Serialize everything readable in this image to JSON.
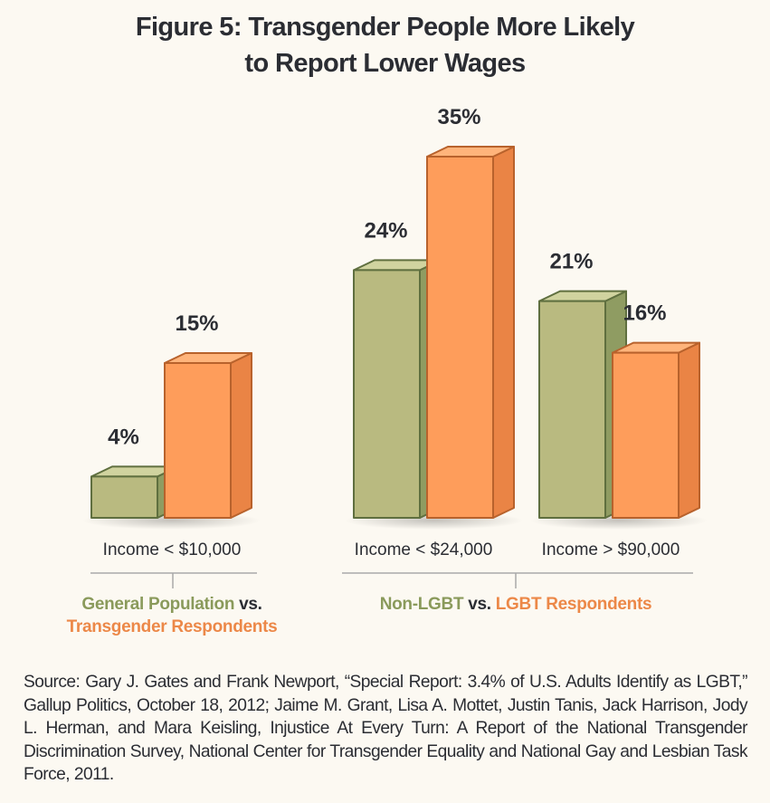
{
  "title_line1": "Figure 5: Transgender People More Likely",
  "title_line2": "to Report Lower Wages",
  "colors": {
    "green_front": "#b9ba80",
    "green_top": "#d0d39f",
    "green_side": "#8f9c62",
    "green_stroke": "#5f6f3f",
    "orange_front": "#fe9d5b",
    "orange_top": "#ffb47b",
    "orange_side": "#ea8445",
    "orange_stroke": "#b8622c",
    "text": "#2b2d33",
    "green_text": "#8a9a5b",
    "orange_text": "#ec8848",
    "bracket": "#a9a9a9"
  },
  "chart_data": {
    "type": "bar",
    "title": "Figure 5: Transgender People More Likely to Report Lower Wages",
    "xlabel": "",
    "ylabel": "",
    "ylim": [
      0,
      35
    ],
    "grid": false,
    "legend": "none",
    "categories": [
      "Income < $10,000",
      "Income < $24,000",
      "Income > $90,000"
    ],
    "bars": [
      {
        "category": "Income < $10,000",
        "series": "General Population",
        "value": 4,
        "label": "4%",
        "color": "green"
      },
      {
        "category": "Income < $10,000",
        "series": "Transgender Respondents",
        "value": 15,
        "label": "15%",
        "color": "orange"
      },
      {
        "category": "Income < $24,000",
        "series": "Non-LGBT",
        "value": 24,
        "label": "24%",
        "color": "green"
      },
      {
        "category": "Income < $24,000",
        "series": "LGBT Respondents",
        "value": 35,
        "label": "35%",
        "color": "orange"
      },
      {
        "category": "Income > $90,000",
        "series": "Non-LGBT",
        "value": 21,
        "label": "21%",
        "color": "green"
      },
      {
        "category": "Income > $90,000",
        "series": "LGBT Respondents",
        "value": 16,
        "label": "16%",
        "color": "orange"
      }
    ],
    "group_labels": [
      {
        "green": "General Population",
        "vs": " vs.",
        "orange": "Transgender Respondents",
        "categories": [
          "Income < $10,000"
        ]
      },
      {
        "green": "Non-LGBT",
        "vs": " vs. ",
        "orange": "LGBT Respondents",
        "categories": [
          "Income < $24,000",
          "Income > $90,000"
        ]
      }
    ]
  },
  "source": "Source: Gary J. Gates and Frank Newport, “Special Report: 3.4% of U.S. Adults Identify as LGBT,” Gallup Politics, October 18, 2012; Jaime M. Grant, Lisa A. Mottet, Justin Tanis, Jack Harrison, Jody L. Herman, and Mara Keisling, Injustice At Every Turn: A Report of the National Transgender Discrimination Survey, National Center for Transgender Equality and National Gay and Lesbian Task Force, 2011."
}
